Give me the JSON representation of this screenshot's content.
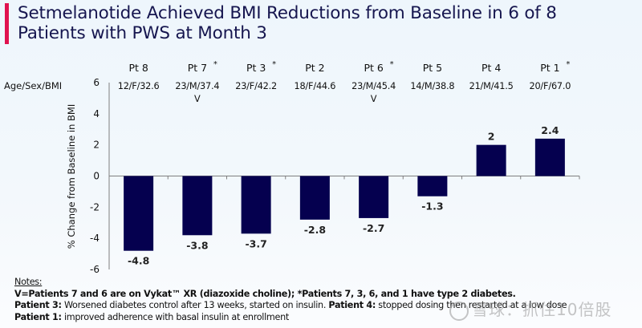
{
  "slide": {
    "title_lines": [
      "Setmelanotide Achieved BMI Reductions from Baseline in 6 of 8",
      "Patients with PWS at Month 3"
    ],
    "accent_color": "#e0124f",
    "bar_color": "#05004f"
  },
  "row_label": "Age/Sex/BMI",
  "chart_data": {
    "type": "bar",
    "title": "Setmelanotide Achieved BMI Reductions from Baseline in 6 of 8 Patients with PWS at Month 3",
    "xlabel": "",
    "ylabel": "% Change from Baseline in BMI",
    "ylim": [
      -6,
      6
    ],
    "yticks": [
      6,
      4,
      2,
      0,
      -2,
      -4,
      -6
    ],
    "categories": [
      "Pt 8",
      "Pt 7",
      "Pt 3",
      "Pt 2",
      "Pt 6",
      "Pt 5",
      "Pt 4",
      "Pt 1"
    ],
    "values": [
      -4.8,
      -3.8,
      -3.7,
      -2.8,
      -2.7,
      -1.3,
      2,
      2.4
    ],
    "value_labels": [
      "-4.8",
      "-3.8",
      "-3.7",
      "-2.8",
      "-2.7",
      "-1.3",
      "2",
      "2.4"
    ],
    "asterisk": [
      false,
      true,
      true,
      false,
      true,
      false,
      false,
      true
    ],
    "age_sex_bmi": [
      "12/F/32.6",
      "23/M/37.4",
      "23/F/42.2",
      "18/F/44.6",
      "23/M/45.4",
      "14/M/38.8",
      "21/M/41.5",
      "20/F/67.0"
    ],
    "vykat_marker": [
      "",
      "V",
      "",
      "",
      "V",
      "",
      "",
      ""
    ],
    "grid": false,
    "legend": "none"
  },
  "notes": {
    "heading": "Notes:",
    "line1": "V=Patients 7 and 6 are on Vykat™ XR (diazoxide choline); *Patients 7, 3, 6, and 1 have type 2 diabetes.",
    "line2_bold": "Patient 3:",
    "line2_text": " Worsened diabetes control after 13 weeks, started on insulin. ",
    "line2_bold2": "Patient 4:",
    "line2_text2": " stopped dosing then restarted at a low dose",
    "line3_bold": "Patient 1:",
    "line3_text": " improved adherence with basal insulin at enrollment"
  },
  "watermark": "雪球：抓住10倍股"
}
